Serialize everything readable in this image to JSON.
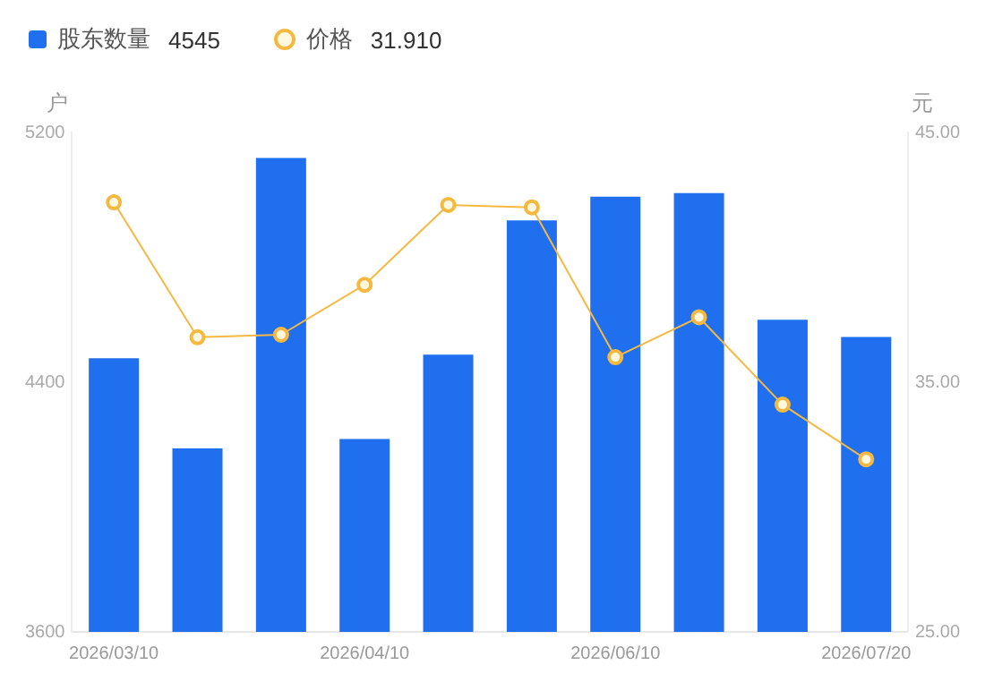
{
  "chart_data": {
    "type": "bar",
    "categories": [
      "2026/03/10",
      null,
      null,
      "2026/04/10",
      null,
      null,
      "2026/06/10",
      null,
      null,
      "2026/07/20"
    ],
    "series": [
      {
        "name": "股东数量",
        "color": "#1f6fef",
        "values": [
          4477,
          4188,
          5118,
          4218,
          4488,
          4918,
          4994,
          5006,
          4600,
          4545
        ]
      },
      {
        "name": "价格",
        "type": "line",
        "axis": "y2",
        "color": "#f5b942",
        "values": [
          42.2,
          36.8,
          36.9,
          38.9,
          42.1,
          42.0,
          36.0,
          37.6,
          34.1,
          31.91
        ]
      }
    ],
    "annotations": [
      "4545",
      "31.910"
    ],
    "ylabel": "户",
    "y2label": "元",
    "ylim": [
      3600,
      5200
    ],
    "yticks": [
      3600,
      4400,
      5200
    ],
    "y2lim": [
      25,
      45
    ],
    "y2ticks": [
      {
        "value": 25,
        "label": "25.00"
      },
      {
        "value": 35,
        "label": "35.00"
      },
      {
        "value": 45,
        "label": "45.00"
      }
    ],
    "grid": false,
    "legend": "top left",
    "marker": "circle"
  }
}
